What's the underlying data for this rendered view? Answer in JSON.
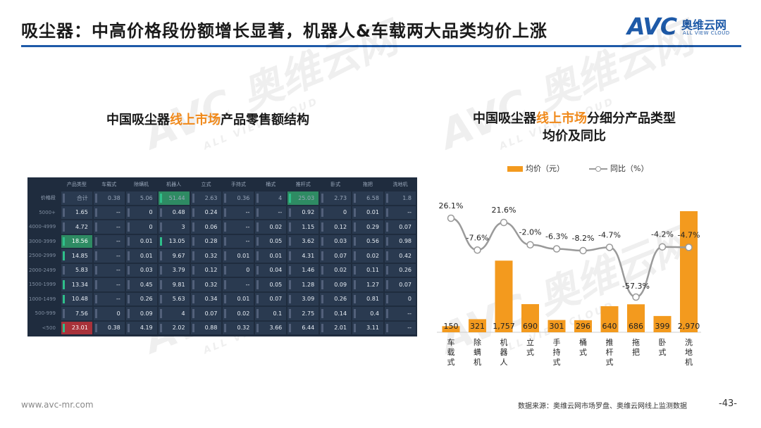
{
  "page": {
    "title": "吸尘器：中高价格段份额增长显著，机器人&车载两大品类均价上涨",
    "page_number": "-43-",
    "website": "www.avc-mr.com",
    "source": "数据来源：奥维云网市场罗盘、奥维云网线上监测数据"
  },
  "logo": {
    "mark": "AVC",
    "name_cn": "奥维云网",
    "name_en": "ALL VIEW CLOUD"
  },
  "watermark": {
    "cn": "奥维云网",
    "en": "ALL VIEW CLOUD",
    "mark": "AVC"
  },
  "left_chart": {
    "title_pre": "中国吸尘器",
    "title_hl": "线上市场",
    "title_post": "产品零售额结构"
  },
  "right_chart": {
    "title_pre": "中国吸尘器",
    "title_hl": "线上市场",
    "title_post": "分细分产品类型",
    "title_line2": "均价及同比",
    "legend_bar": "均价（元）",
    "legend_line": "同比（%）"
  },
  "colors": {
    "accent": "#f0891a",
    "bar": "#f39a1e",
    "line": "#9a9a9a",
    "brand": "#1e5aa8",
    "heat_bg": "#1f2c3e",
    "heat_green": "#2e8b63",
    "heat_red": "#a8323a"
  },
  "chart_data": [
    {
      "type": "heatmap",
      "columns": [
        "产品类型",
        "车载式",
        "除螨机",
        "机器人",
        "立式",
        "手持式",
        "桶式",
        "推杆式",
        "卧式",
        "拖把",
        "洗地机"
      ],
      "row_header": "价格段",
      "rows": [
        {
          "label": "价格段",
          "values": [
            "合计",
            "0.38",
            "5.06",
            "51.44",
            "2.63",
            "0.36",
            "4",
            "25.03",
            "2.73",
            "6.58",
            "1.8"
          ]
        },
        {
          "label": "5000+",
          "values": [
            "1.65",
            "--",
            "0",
            "0.48",
            "0.24",
            "--",
            "--",
            "0.92",
            "0",
            "0.01",
            "--"
          ]
        },
        {
          "label": "4000-4999",
          "values": [
            "4.72",
            "--",
            "0",
            "3",
            "0.06",
            "--",
            "0.02",
            "1.15",
            "0.12",
            "0.29",
            "0.07"
          ]
        },
        {
          "label": "3000-3999",
          "values": [
            "18.56",
            "--",
            "0.01",
            "13.05",
            "0.28",
            "--",
            "0.05",
            "3.62",
            "0.03",
            "0.56",
            "0.98"
          ]
        },
        {
          "label": "2500-2999",
          "values": [
            "14.85",
            "--",
            "0.01",
            "9.67",
            "0.32",
            "0.01",
            "0.01",
            "4.31",
            "0.07",
            "0.02",
            "0.42"
          ]
        },
        {
          "label": "2000-2499",
          "values": [
            "5.83",
            "--",
            "0.03",
            "3.79",
            "0.12",
            "0",
            "0.04",
            "1.46",
            "0.02",
            "0.11",
            "0.26"
          ]
        },
        {
          "label": "1500-1999",
          "values": [
            "13.34",
            "--",
            "0.45",
            "9.81",
            "0.32",
            "--",
            "0.05",
            "1.28",
            "0.09",
            "1.27",
            "0.07"
          ]
        },
        {
          "label": "1000-1499",
          "values": [
            "10.48",
            "--",
            "0.26",
            "5.63",
            "0.34",
            "0.01",
            "0.07",
            "3.09",
            "0.26",
            "0.81",
            "0"
          ]
        },
        {
          "label": "500-999",
          "values": [
            "7.56",
            "0",
            "0.09",
            "4",
            "0.07",
            "0.02",
            "0.1",
            "2.75",
            "0.14",
            "0.4",
            "--"
          ]
        },
        {
          "label": "<500",
          "values": [
            "23.01",
            "0.38",
            "4.19",
            "2.02",
            "0.88",
            "0.32",
            "3.66",
            "6.44",
            "2.01",
            "3.11",
            "--"
          ]
        }
      ]
    },
    {
      "type": "bar",
      "categories": [
        "车载式",
        "除螨机",
        "机器人",
        "立式",
        "手持式",
        "桶式",
        "推杆式",
        "拖把",
        "卧式",
        "洗地机"
      ],
      "series": [
        {
          "name": "均价（元）",
          "type": "bar",
          "values": [
            150,
            321,
            1757,
            690,
            301,
            296,
            640,
            686,
            399,
            2970
          ],
          "labels": [
            "150",
            "321",
            "1,757",
            "690",
            "301",
            "296",
            "640",
            "686",
            "399",
            "2,970"
          ]
        },
        {
          "name": "同比（%）",
          "type": "line",
          "values": [
            26.1,
            -7.6,
            21.6,
            -2.0,
            -6.3,
            -8.2,
            -4.7,
            -57.3,
            -4.2,
            -4.7
          ],
          "labels": [
            "26.1%",
            "-7.6%",
            "21.6%",
            "-2.0%",
            "-6.3%",
            "-8.2%",
            "-4.7%",
            "-57.3%",
            "-4.2%",
            "-4.7%"
          ]
        }
      ],
      "legend": "top"
    }
  ]
}
